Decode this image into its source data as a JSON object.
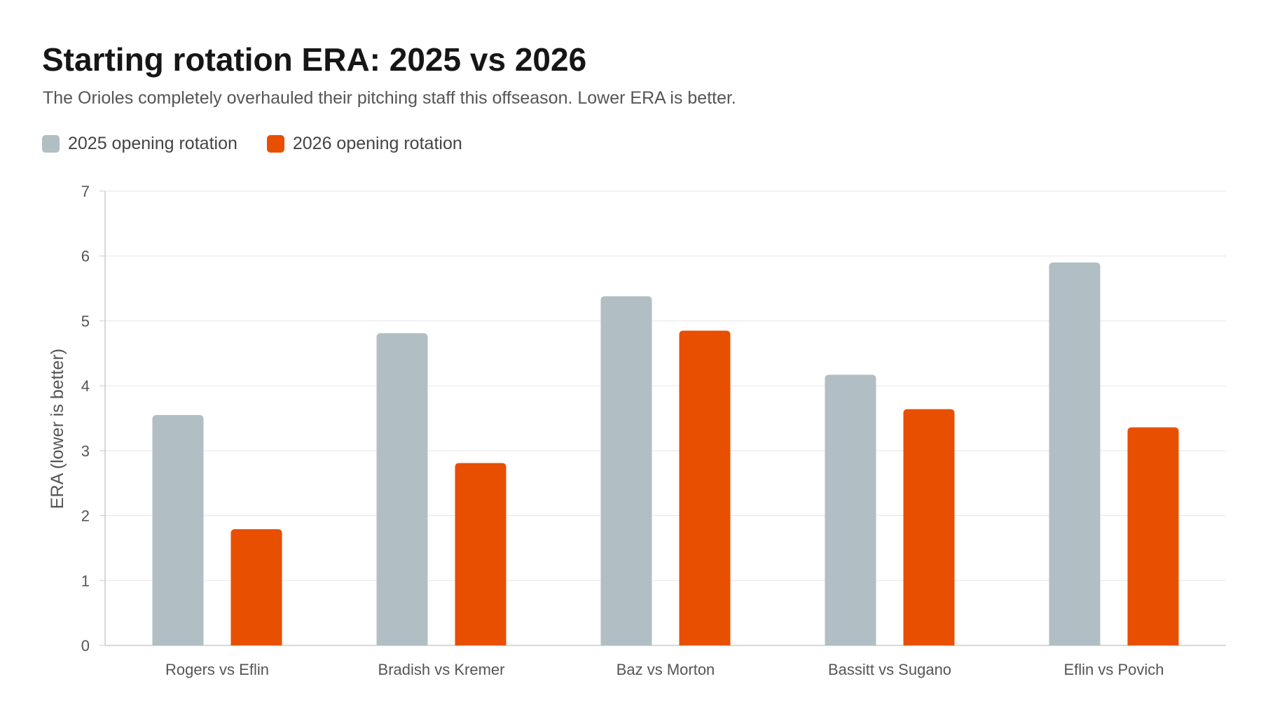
{
  "header": {
    "title": "Starting rotation ERA: 2025 vs 2026",
    "subtitle": "The Orioles completely overhauled their pitching staff this offseason. Lower ERA is better."
  },
  "legend": {
    "items": [
      {
        "label": "2025 opening rotation",
        "color": "#b1bec4"
      },
      {
        "label": "2026 opening rotation",
        "color": "#e84f00"
      }
    ]
  },
  "chart_data": {
    "type": "bar",
    "title": "Starting rotation ERA: 2025 vs 2026",
    "subtitle": "The Orioles completely overhauled their pitching staff this offseason. Lower ERA is better.",
    "categories": [
      "Rogers vs Eflin",
      "Bradish vs Kremer",
      "Baz vs Morton",
      "Bassitt vs Sugano",
      "Eflin vs Povich"
    ],
    "series": [
      {
        "name": "2025 opening rotation",
        "color": "#b1bec4",
        "values": [
          3.55,
          4.81,
          5.38,
          4.17,
          5.9
        ]
      },
      {
        "name": "2026 opening rotation",
        "color": "#e84f00",
        "values": [
          1.79,
          2.81,
          4.85,
          3.64,
          3.36
        ]
      }
    ],
    "xlabel": "",
    "ylabel": "ERA (lower is better)",
    "ylim": [
      0,
      7
    ],
    "yticks": [
      0,
      1,
      2,
      3,
      4,
      5,
      6,
      7
    ],
    "grid": true,
    "legend_position": "top-left"
  }
}
